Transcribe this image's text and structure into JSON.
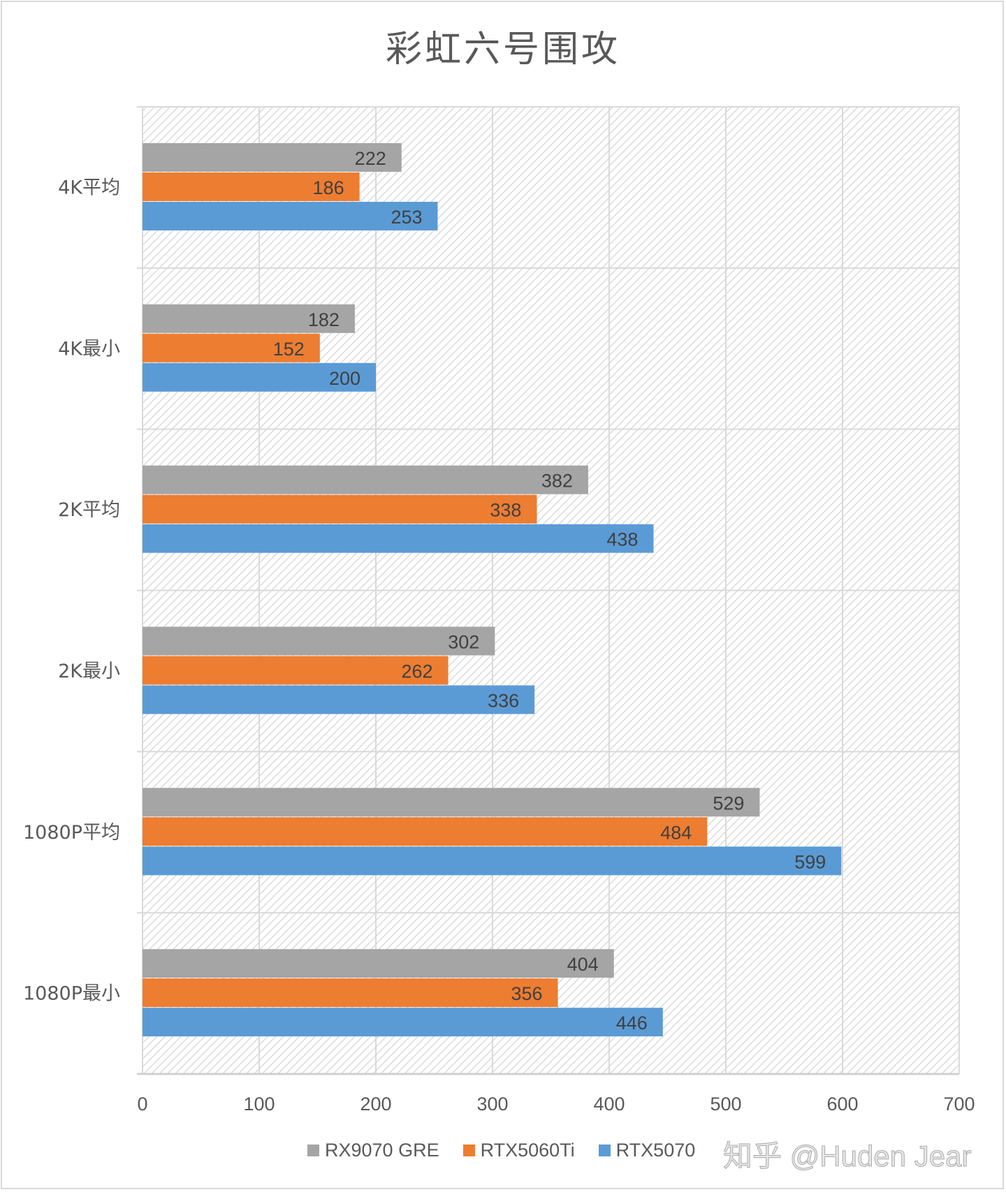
{
  "chart_data": {
    "type": "bar",
    "orientation": "horizontal",
    "title": "彩虹六号围攻",
    "categories": [
      "4K平均",
      "4K最小",
      "2K平均",
      "2K最小",
      "1080P平均",
      "1080P最小"
    ],
    "series": [
      {
        "name": "RX9070 GRE",
        "color": "#a5a5a5",
        "values": [
          222,
          182,
          382,
          302,
          529,
          404
        ]
      },
      {
        "name": "RTX5060Ti",
        "color": "#ed7d31",
        "values": [
          186,
          152,
          338,
          262,
          484,
          356
        ]
      },
      {
        "name": "RTX5070",
        "color": "#5b9bd5",
        "values": [
          253,
          200,
          438,
          336,
          599,
          446
        ]
      }
    ],
    "xlim": [
      0,
      700
    ],
    "xticks": [
      "0",
      "100",
      "200",
      "300",
      "400",
      "500",
      "600",
      "700"
    ],
    "grid": true,
    "legend": "bottom",
    "data_labels": true
  },
  "watermark": "知乎 @Huden Jear"
}
